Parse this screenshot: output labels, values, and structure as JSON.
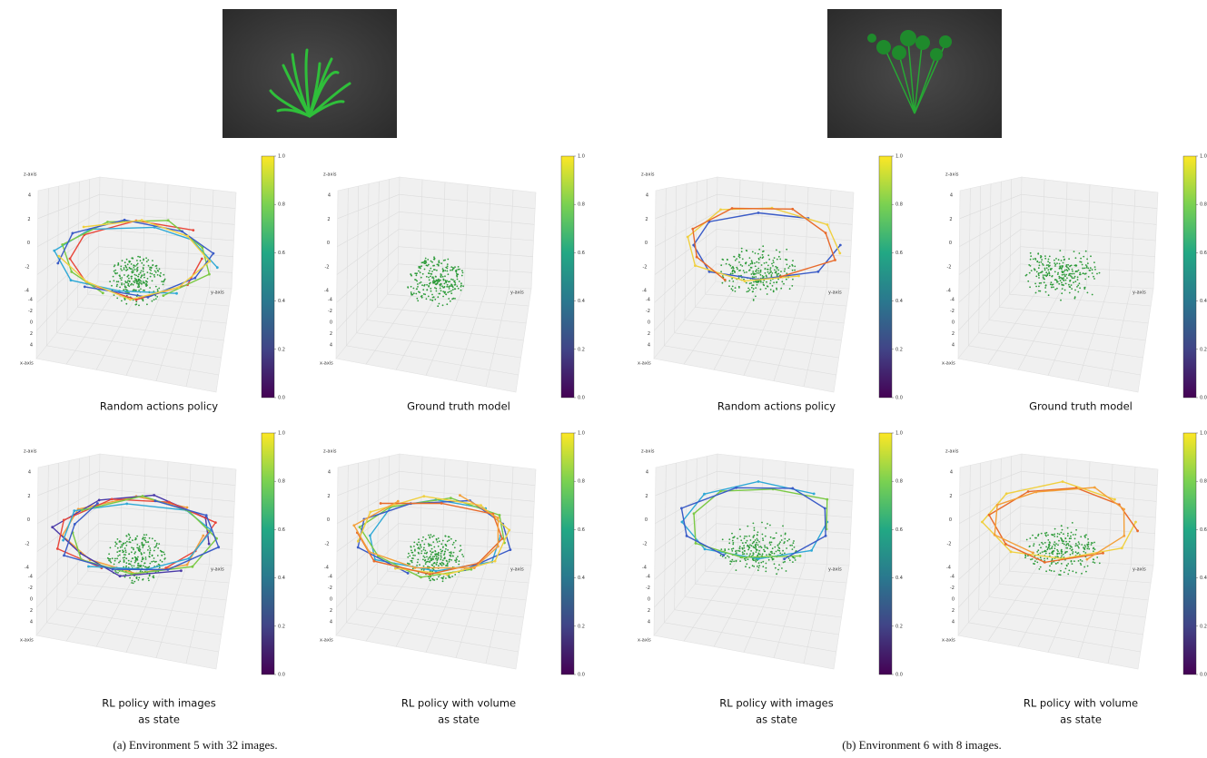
{
  "figure": {
    "groups": [
      {
        "caption": "(a)  Environment 5 with 32 images.",
        "panels": [
          {
            "caption": [
              "Random actions policy"
            ]
          },
          {
            "caption": [
              "Ground truth model"
            ]
          },
          {
            "caption": [
              "RL policy with images",
              "as state"
            ]
          },
          {
            "caption": [
              "RL policy with volume",
              "as state"
            ]
          }
        ]
      },
      {
        "caption": "(b)  Environment 6 with 8 images.",
        "panels": [
          {
            "caption": [
              "Random actions policy"
            ]
          },
          {
            "caption": [
              "Ground truth model"
            ]
          },
          {
            "caption": [
              "RL policy with images",
              "as state"
            ]
          },
          {
            "caption": [
              "RL policy with volume",
              "as state"
            ]
          }
        ]
      }
    ],
    "axis_labels": {
      "x": "x-axis",
      "y": "y-axis",
      "z": "z-axis"
    },
    "z_ticks": [
      "4",
      "2",
      "0",
      "-2",
      "-4"
    ],
    "x_ticks": [
      "-4",
      "-2",
      "0",
      "2",
      "4"
    ],
    "colorbar_ticks": [
      "0.0",
      "0.2",
      "0.4",
      "0.6",
      "0.8",
      "1.0"
    ]
  }
}
